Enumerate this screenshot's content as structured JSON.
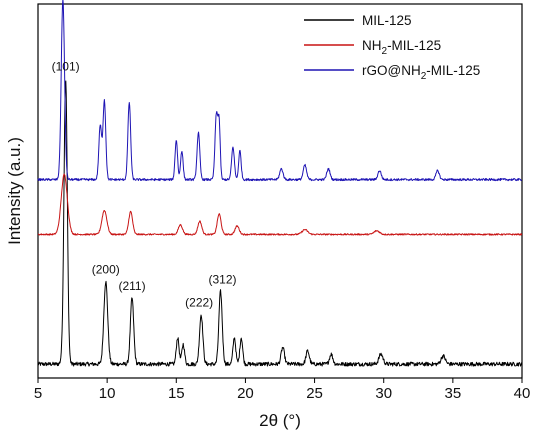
{
  "chart_data": {
    "type": "line",
    "title": "",
    "xlabel": "2θ (°)",
    "ylabel": "Intensity (a.u.)",
    "xlim": [
      5,
      40
    ],
    "xticks": [
      5,
      10,
      15,
      20,
      25,
      30,
      35,
      40
    ],
    "y_ticks_shown": false,
    "legend_position": "top-right",
    "series": [
      {
        "name": "MIL-125",
        "name_main": "MIL-125",
        "name_sub": "",
        "name_rest": "",
        "color": "#000000",
        "baseline": 0.03,
        "noise": 0.006,
        "peaks": [
          {
            "x": 6.8,
            "h": 0.02,
            "w": 0.12
          },
          {
            "x": 7.0,
            "h": 0.86,
            "w": 0.12
          },
          {
            "x": 9.9,
            "h": 0.25,
            "w": 0.14
          },
          {
            "x": 11.8,
            "h": 0.2,
            "w": 0.12
          },
          {
            "x": 15.1,
            "h": 0.08,
            "w": 0.1
          },
          {
            "x": 15.5,
            "h": 0.06,
            "w": 0.1
          },
          {
            "x": 16.8,
            "h": 0.15,
            "w": 0.12
          },
          {
            "x": 18.2,
            "h": 0.22,
            "w": 0.12
          },
          {
            "x": 19.2,
            "h": 0.08,
            "w": 0.1
          },
          {
            "x": 19.7,
            "h": 0.08,
            "w": 0.1
          },
          {
            "x": 22.7,
            "h": 0.05,
            "w": 0.12
          },
          {
            "x": 24.5,
            "h": 0.04,
            "w": 0.12
          },
          {
            "x": 26.2,
            "h": 0.03,
            "w": 0.12
          },
          {
            "x": 29.8,
            "h": 0.03,
            "w": 0.15
          },
          {
            "x": 34.3,
            "h": 0.025,
            "w": 0.15
          }
        ]
      },
      {
        "name": "NH2-MIL-125",
        "name_main": "NH",
        "name_sub": "2",
        "name_rest": "-MIL-125",
        "color": "#c81414",
        "baseline": 0.03,
        "noise": 0.006,
        "peaks": [
          {
            "x": 6.9,
            "h": 0.5,
            "w": 0.22
          },
          {
            "x": 9.8,
            "h": 0.2,
            "w": 0.18
          },
          {
            "x": 11.7,
            "h": 0.19,
            "w": 0.14
          },
          {
            "x": 15.3,
            "h": 0.08,
            "w": 0.15
          },
          {
            "x": 16.7,
            "h": 0.11,
            "w": 0.14
          },
          {
            "x": 18.1,
            "h": 0.17,
            "w": 0.14
          },
          {
            "x": 19.4,
            "h": 0.07,
            "w": 0.15
          },
          {
            "x": 24.3,
            "h": 0.04,
            "w": 0.2
          },
          {
            "x": 29.5,
            "h": 0.03,
            "w": 0.2
          }
        ]
      },
      {
        "name": "rGO@NH2-MIL-125",
        "name_main": "rGO@NH",
        "name_sub": "2",
        "name_rest": "-MIL-125",
        "color": "#1e14b4",
        "baseline": 0.03,
        "noise": 0.006,
        "peaks": [
          {
            "x": 6.8,
            "h": 1.0,
            "w": 0.12
          },
          {
            "x": 9.5,
            "h": 0.3,
            "w": 0.1
          },
          {
            "x": 9.8,
            "h": 0.44,
            "w": 0.1
          },
          {
            "x": 11.6,
            "h": 0.43,
            "w": 0.1
          },
          {
            "x": 15.0,
            "h": 0.22,
            "w": 0.09
          },
          {
            "x": 15.4,
            "h": 0.16,
            "w": 0.09
          },
          {
            "x": 16.6,
            "h": 0.26,
            "w": 0.1
          },
          {
            "x": 17.9,
            "h": 0.36,
            "w": 0.1
          },
          {
            "x": 18.1,
            "h": 0.3,
            "w": 0.08
          },
          {
            "x": 19.1,
            "h": 0.18,
            "w": 0.1
          },
          {
            "x": 19.6,
            "h": 0.16,
            "w": 0.09
          },
          {
            "x": 22.6,
            "h": 0.06,
            "w": 0.12
          },
          {
            "x": 24.3,
            "h": 0.08,
            "w": 0.12
          },
          {
            "x": 26.0,
            "h": 0.06,
            "w": 0.12
          },
          {
            "x": 29.7,
            "h": 0.05,
            "w": 0.12
          },
          {
            "x": 33.9,
            "h": 0.05,
            "w": 0.12
          }
        ]
      }
    ],
    "annotations": [
      {
        "text": "(101)",
        "x": 7.0
      },
      {
        "text": "(200)",
        "x": 9.9
      },
      {
        "text": "(211)",
        "x": 11.8
      },
      {
        "text": "(222)",
        "x": 16.8
      },
      {
        "text": "(312)",
        "x": 18.2
      }
    ]
  }
}
